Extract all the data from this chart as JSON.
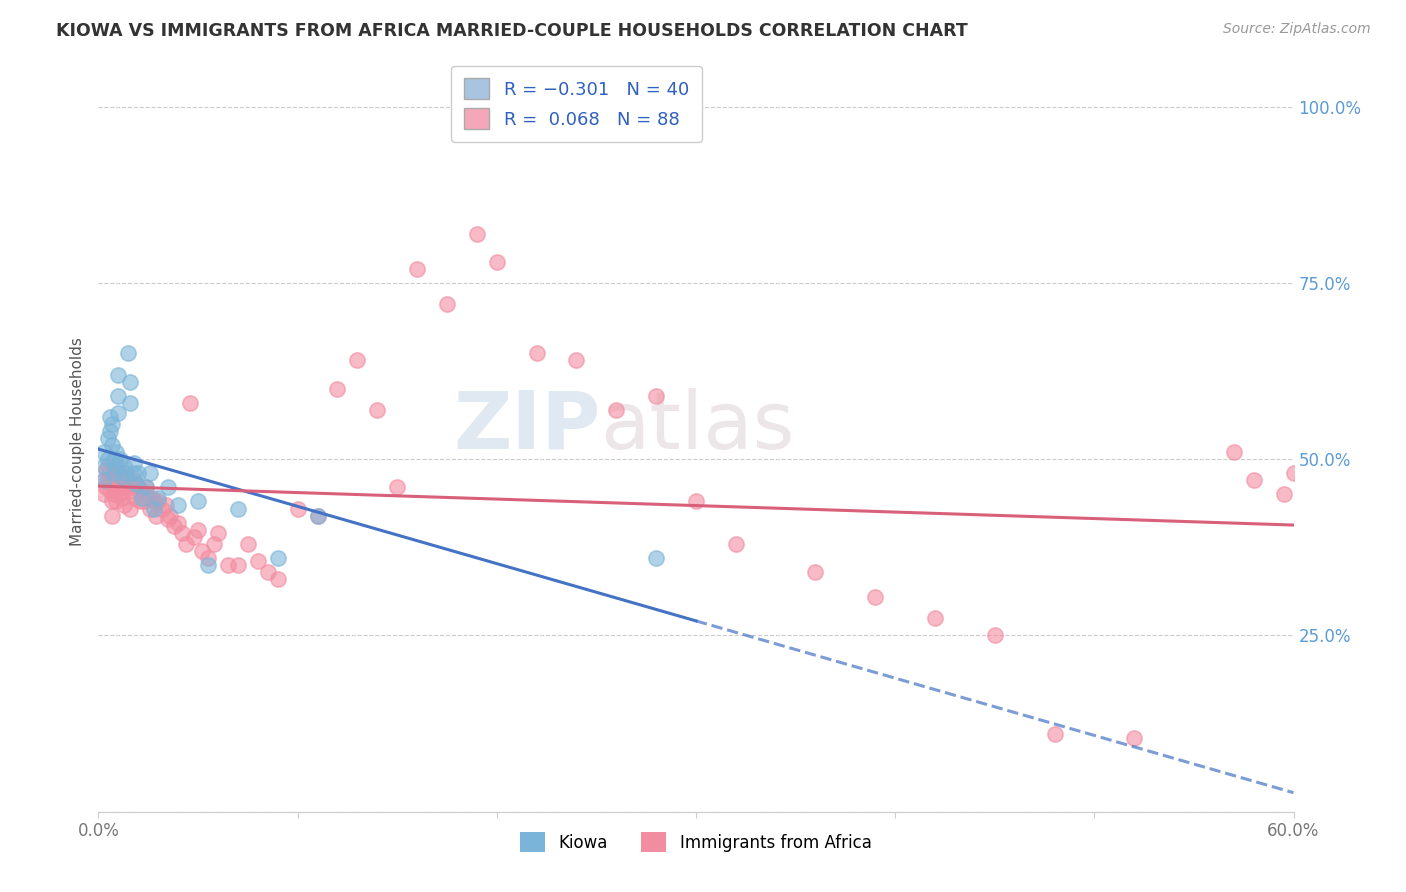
{
  "title": "KIOWA VS IMMIGRANTS FROM AFRICA MARRIED-COUPLE HOUSEHOLDS CORRELATION CHART",
  "source": "Source: ZipAtlas.com",
  "ylabel": "Married-couple Households",
  "xmin": 0.0,
  "xmax": 0.6,
  "ymin": 0.0,
  "ymax": 1.05,
  "xtick_positions": [
    0.0,
    0.1,
    0.2,
    0.3,
    0.4,
    0.5,
    0.6
  ],
  "xticklabels": [
    "0.0%",
    "",
    "",
    "",
    "",
    "",
    "60.0%"
  ],
  "ytick_positions": [
    0.0,
    0.25,
    0.5,
    0.75,
    1.0
  ],
  "yticklabels_right": [
    "",
    "25.0%",
    "50.0%",
    "75.0%",
    "100.0%"
  ],
  "legend_color1": "#a8c4e0",
  "legend_color2": "#f4a7b9",
  "kiowa_color": "#7ab4d8",
  "africa_color": "#f28ca0",
  "trendline_blue": "#4472c4",
  "trendline_pink": "#d9607a",
  "watermark_zip": "ZIP",
  "watermark_atlas": "atlas",
  "kiowa_x": [
    0.003,
    0.003,
    0.003,
    0.005,
    0.005,
    0.006,
    0.006,
    0.007,
    0.007,
    0.008,
    0.008,
    0.009,
    0.009,
    0.01,
    0.01,
    0.01,
    0.011,
    0.012,
    0.013,
    0.014,
    0.015,
    0.016,
    0.016,
    0.018,
    0.018,
    0.019,
    0.02,
    0.022,
    0.024,
    0.026,
    0.028,
    0.03,
    0.035,
    0.04,
    0.05,
    0.055,
    0.07,
    0.09,
    0.11,
    0.28
  ],
  "kiowa_y": [
    0.51,
    0.49,
    0.47,
    0.53,
    0.5,
    0.56,
    0.54,
    0.55,
    0.52,
    0.5,
    0.48,
    0.51,
    0.49,
    0.62,
    0.59,
    0.565,
    0.5,
    0.475,
    0.49,
    0.48,
    0.65,
    0.61,
    0.58,
    0.495,
    0.48,
    0.465,
    0.48,
    0.445,
    0.46,
    0.48,
    0.43,
    0.445,
    0.46,
    0.435,
    0.44,
    0.35,
    0.43,
    0.36,
    0.42,
    0.36
  ],
  "africa_x": [
    0.003,
    0.003,
    0.004,
    0.004,
    0.005,
    0.005,
    0.006,
    0.006,
    0.007,
    0.007,
    0.007,
    0.008,
    0.008,
    0.009,
    0.009,
    0.01,
    0.01,
    0.011,
    0.011,
    0.012,
    0.012,
    0.013,
    0.013,
    0.014,
    0.015,
    0.016,
    0.016,
    0.017,
    0.018,
    0.018,
    0.019,
    0.02,
    0.021,
    0.022,
    0.023,
    0.024,
    0.025,
    0.026,
    0.027,
    0.028,
    0.029,
    0.03,
    0.032,
    0.034,
    0.035,
    0.036,
    0.038,
    0.04,
    0.042,
    0.044,
    0.046,
    0.048,
    0.05,
    0.052,
    0.055,
    0.058,
    0.06,
    0.065,
    0.07,
    0.075,
    0.08,
    0.085,
    0.09,
    0.1,
    0.11,
    0.12,
    0.13,
    0.14,
    0.15,
    0.16,
    0.175,
    0.19,
    0.2,
    0.22,
    0.24,
    0.26,
    0.28,
    0.3,
    0.32,
    0.36,
    0.39,
    0.42,
    0.45,
    0.48,
    0.52,
    0.57,
    0.58,
    0.595,
    0.6
  ],
  "africa_y": [
    0.47,
    0.45,
    0.485,
    0.46,
    0.49,
    0.47,
    0.48,
    0.455,
    0.465,
    0.44,
    0.42,
    0.475,
    0.45,
    0.465,
    0.44,
    0.49,
    0.47,
    0.48,
    0.45,
    0.47,
    0.445,
    0.46,
    0.435,
    0.475,
    0.465,
    0.455,
    0.43,
    0.46,
    0.47,
    0.445,
    0.465,
    0.46,
    0.44,
    0.455,
    0.44,
    0.46,
    0.445,
    0.43,
    0.445,
    0.44,
    0.42,
    0.44,
    0.43,
    0.435,
    0.415,
    0.42,
    0.405,
    0.41,
    0.395,
    0.38,
    0.58,
    0.39,
    0.4,
    0.37,
    0.36,
    0.38,
    0.395,
    0.35,
    0.35,
    0.38,
    0.355,
    0.34,
    0.33,
    0.43,
    0.42,
    0.6,
    0.64,
    0.57,
    0.46,
    0.77,
    0.72,
    0.82,
    0.78,
    0.65,
    0.64,
    0.57,
    0.59,
    0.44,
    0.38,
    0.34,
    0.305,
    0.275,
    0.25,
    0.11,
    0.105,
    0.51,
    0.47,
    0.45,
    0.48
  ]
}
